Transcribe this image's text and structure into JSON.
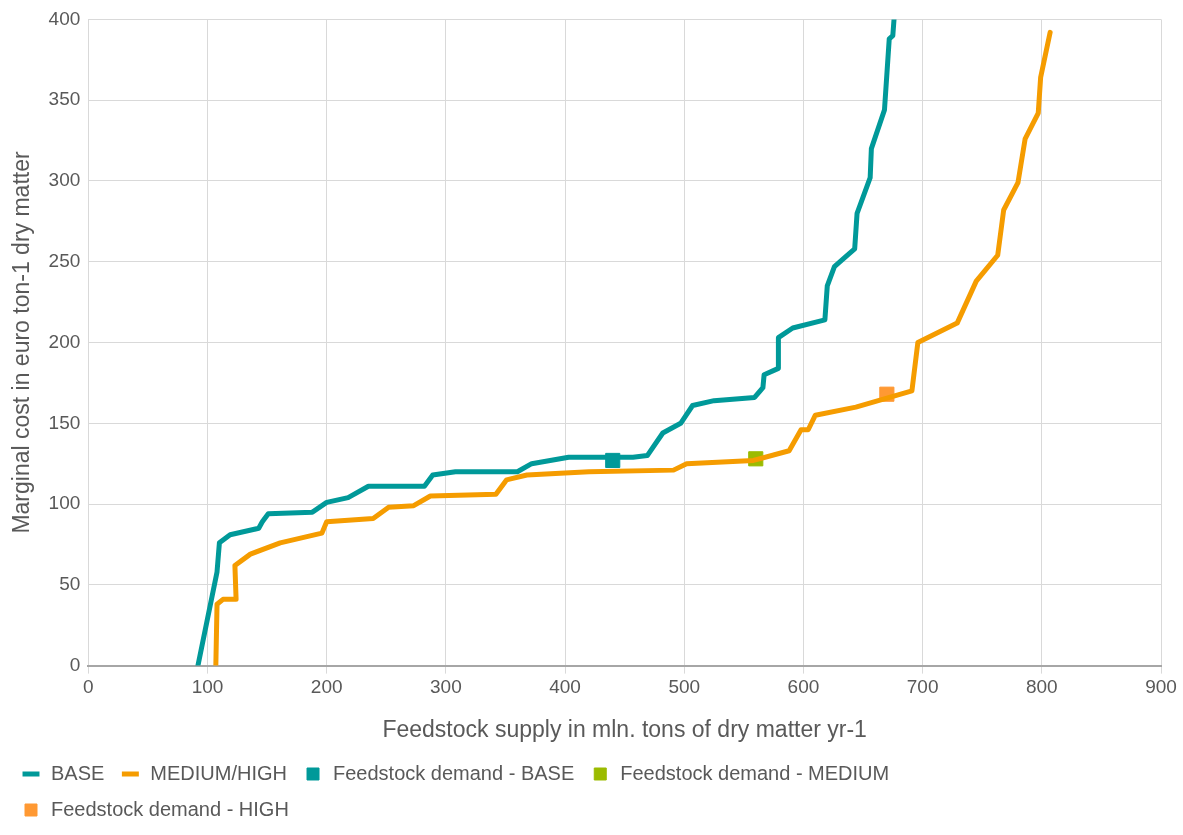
{
  "chart_data": {
    "type": "line",
    "xlabel": "Feedstock supply in mln. tons of dry matter yr-1",
    "ylabel": "Marginal cost in euro ton-1 dry matter",
    "xlim": [
      0,
      900
    ],
    "xticks": [
      0,
      100,
      200,
      300,
      400,
      500,
      600,
      700,
      800,
      900
    ],
    "ylim": [
      0,
      400
    ],
    "yticks": [
      0,
      50,
      100,
      150,
      200,
      250,
      300,
      350,
      400
    ],
    "grid": true,
    "legend": "bottom",
    "marker": "none",
    "line_style": "solid",
    "series": [
      {
        "name": "BASE",
        "color": "#009999",
        "x": [
          92,
          108,
          110,
          119,
          143,
          146,
          151,
          188,
          200,
          218,
          235,
          282,
          289,
          308,
          360,
          372,
          403,
          457,
          469,
          482,
          497,
          507,
          525,
          559,
          566,
          567,
          579,
          579,
          591,
          618,
          620,
          626,
          643,
          645,
          656,
          657,
          668,
          672,
          675,
          676
        ],
        "values": [
          0,
          58,
          76,
          81,
          85,
          89,
          94,
          95,
          101,
          104,
          111,
          111,
          118,
          120,
          120,
          125,
          129,
          129,
          130,
          144,
          150,
          161,
          164,
          166,
          172,
          180,
          184,
          203,
          209,
          214,
          235,
          247,
          258,
          280,
          302,
          320,
          344,
          388,
          390,
          400
        ]
      },
      {
        "name": "MEDIUM/HIGH",
        "color": "#f59c00",
        "x": [
          107,
          108,
          113,
          124,
          123,
          136,
          161,
          196,
          200,
          239,
          252,
          273,
          287,
          342,
          351,
          368,
          420,
          491,
          502,
          558,
          588,
          598,
          604,
          610,
          644,
          691,
          696,
          729,
          745,
          763,
          768,
          780,
          786,
          797,
          799,
          807
        ],
        "values": [
          0,
          38,
          41,
          41,
          62,
          69,
          76,
          82,
          89,
          91,
          98,
          99,
          105,
          106,
          115,
          118,
          120,
          121,
          125,
          127,
          133,
          146,
          146,
          155,
          160,
          170,
          200,
          212,
          238,
          254,
          282,
          299,
          326,
          342,
          364,
          392
        ]
      },
      {
        "name": "Feedstock demand - BASE",
        "type": "scatter",
        "marker": "square",
        "color": "#009999",
        "x": [
          440
        ],
        "values": [
          127
        ]
      },
      {
        "name": "Feedstock demand - MEDIUM",
        "type": "scatter",
        "marker": "square",
        "color": "#9bbb00",
        "x": [
          560
        ],
        "values": [
          128
        ]
      },
      {
        "name": "Feedstock demand - HIGH",
        "type": "scatter",
        "marker": "square",
        "color": "#ff9933",
        "x": [
          670
        ],
        "values": [
          168
        ]
      }
    ]
  }
}
